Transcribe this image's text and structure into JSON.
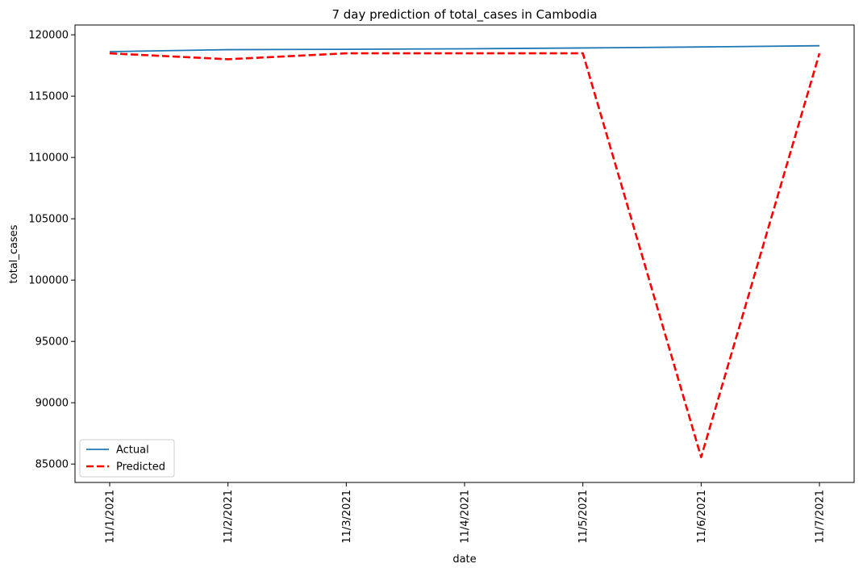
{
  "chart_data": {
    "type": "line",
    "title": "7 day prediction of total_cases in Cambodia",
    "xlabel": "date",
    "ylabel": "total_cases",
    "categories": [
      "11/1/2021",
      "11/2/2021",
      "11/3/2021",
      "11/4/2021",
      "11/5/2021",
      "11/6/2021",
      "11/7/2021"
    ],
    "yticks": [
      85000,
      90000,
      95000,
      100000,
      105000,
      110000,
      115000,
      120000
    ],
    "ylim": [
      83500,
      120800
    ],
    "grid": false,
    "legend": "lower-left",
    "series": [
      {
        "name": "Actual",
        "color": "#1f77b4",
        "style": "solid",
        "values": [
          118630,
          118790,
          118820,
          118860,
          118930,
          119010,
          119110
        ]
      },
      {
        "name": "Predicted",
        "color": "#ff0000",
        "style": "dashed",
        "values": [
          118490,
          118010,
          118490,
          118490,
          118490,
          85560,
          118490
        ]
      }
    ]
  }
}
